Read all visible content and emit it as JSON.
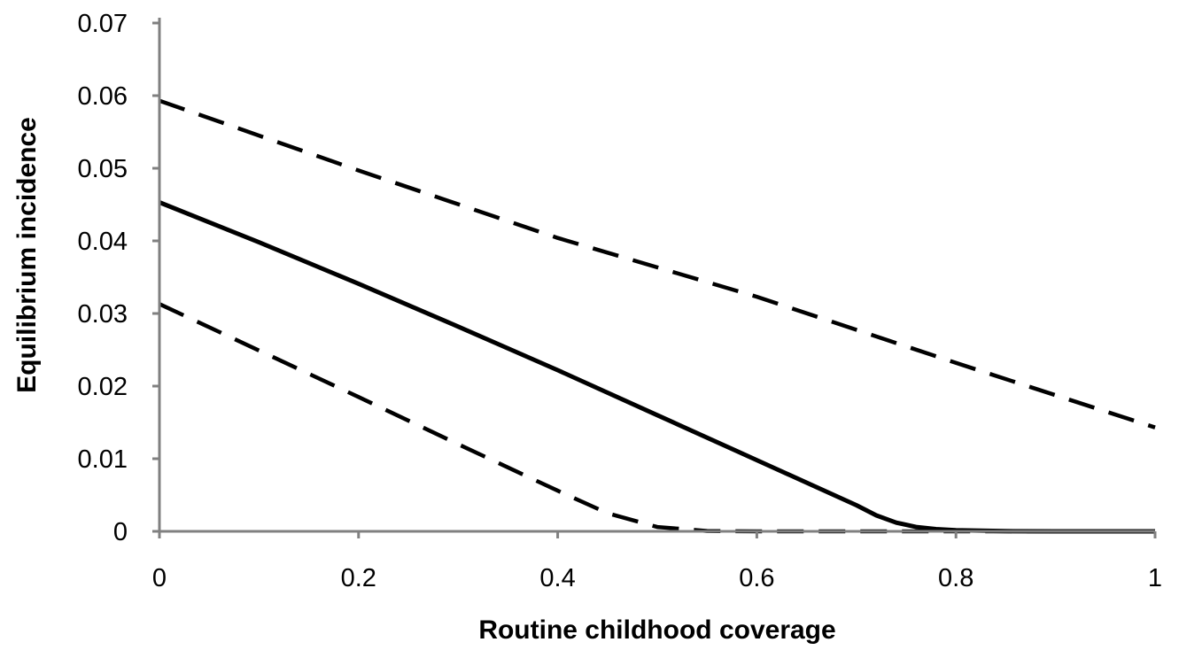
{
  "chart_data": {
    "type": "line",
    "title": "",
    "xlabel": "Routine childhood coverage",
    "ylabel": "Equilibrium incidence",
    "xlim": [
      0,
      1
    ],
    "ylim": [
      0,
      0.07
    ],
    "x_ticks": [
      "0",
      "0.2",
      "0.4",
      "0.6",
      "0.8",
      "1"
    ],
    "y_ticks": [
      "0",
      "0.01",
      "0.02",
      "0.03",
      "0.04",
      "0.05",
      "0.06",
      "0.07"
    ],
    "grid": false,
    "legend": "none",
    "series": [
      {
        "style": "solid",
        "color": "#000000",
        "x": [
          0,
          0.1,
          0.2,
          0.3,
          0.4,
          0.5,
          0.6,
          0.7,
          0.72,
          0.74,
          0.76,
          0.78,
          0.8,
          0.85,
          0.9,
          1.0
        ],
        "y": [
          0.0453,
          0.0398,
          0.0341,
          0.0282,
          0.0222,
          0.016,
          0.0098,
          0.0036,
          0.0022,
          0.0012,
          0.0006,
          0.0003,
          0.00015,
          3e-05,
          0.0,
          0.0
        ]
      },
      {
        "style": "dashed",
        "color": "#000000",
        "x": [
          0,
          0.2,
          0.4,
          0.6,
          0.8,
          1.0
        ],
        "y": [
          0.0593,
          0.0497,
          0.0404,
          0.0323,
          0.0232,
          0.0143
        ]
      },
      {
        "style": "dashed",
        "color": "#000000",
        "x": [
          0,
          0.1,
          0.2,
          0.3,
          0.4,
          0.45,
          0.5,
          0.55,
          0.6,
          0.7,
          0.8,
          0.9,
          1.0
        ],
        "y": [
          0.0313,
          0.0249,
          0.0185,
          0.012,
          0.0056,
          0.0025,
          0.0006,
          5e-05,
          0.0,
          0.0,
          0.0,
          0.0,
          0.0
        ]
      }
    ]
  }
}
